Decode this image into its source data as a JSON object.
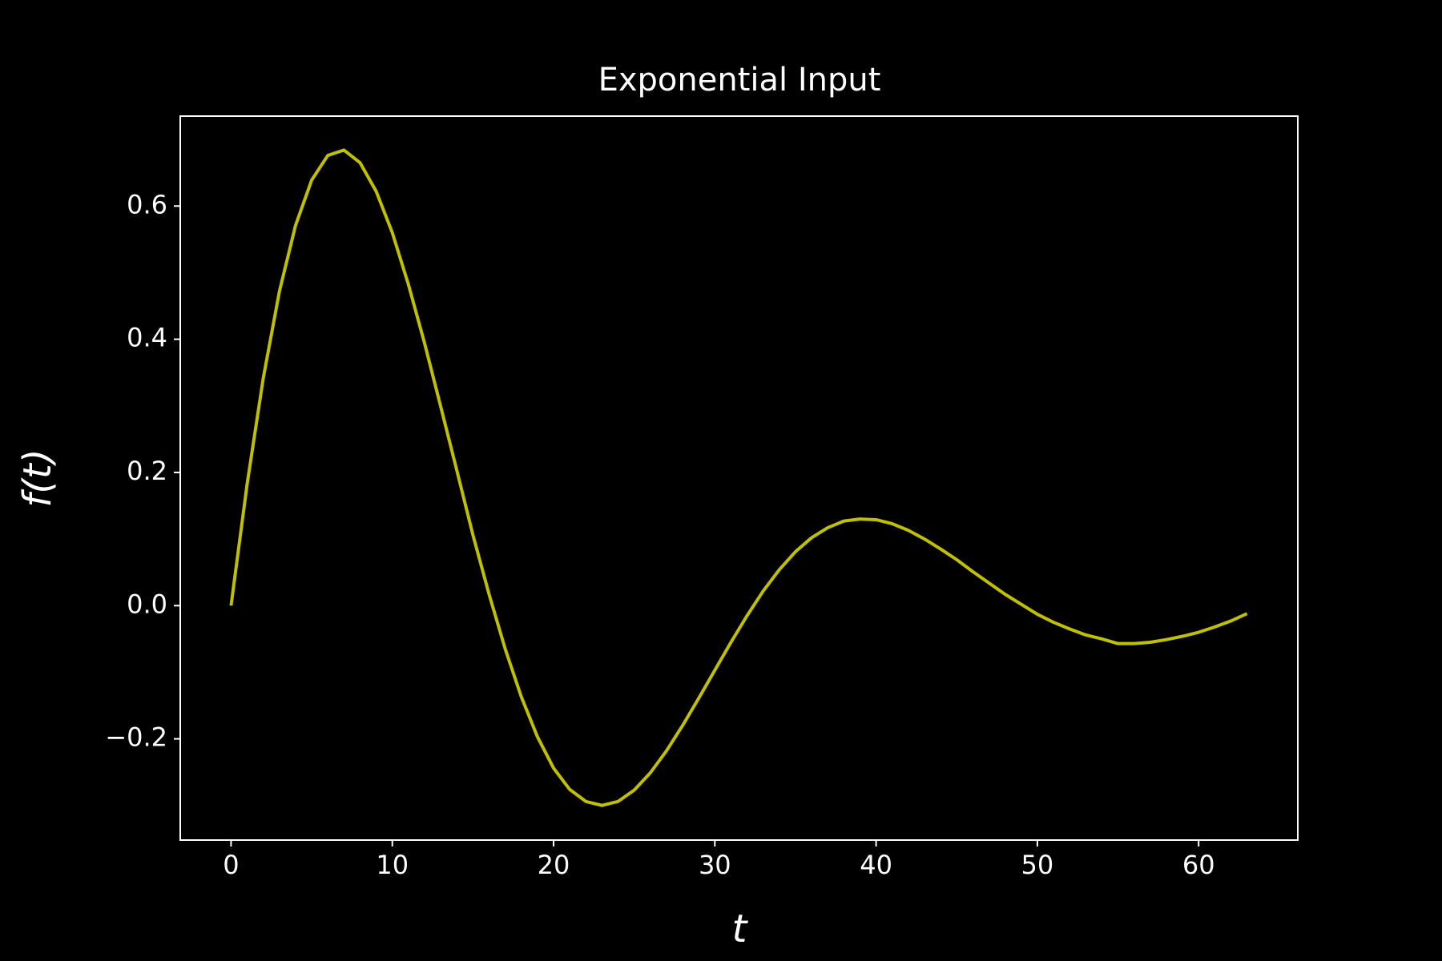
{
  "chart_data": {
    "type": "line",
    "title": "Exponential Input",
    "x_label": "t",
    "y_label": "f(t)",
    "x": [
      0,
      1,
      2,
      3,
      4,
      5,
      6,
      7,
      8,
      9,
      10,
      11,
      12,
      13,
      14,
      15,
      16,
      17,
      18,
      19,
      20,
      21,
      22,
      23,
      24,
      25,
      26,
      27,
      28,
      29,
      30,
      31,
      32,
      33,
      34,
      35,
      36,
      37,
      38,
      39,
      40,
      41,
      42,
      43,
      44,
      45,
      46,
      47,
      48,
      49,
      50,
      51,
      52,
      53,
      54,
      55,
      56,
      57,
      58,
      59,
      60,
      61,
      62,
      63
    ],
    "series": [
      {
        "name": "f(t)",
        "color": "#c0c000",
        "values": [
          0,
          0.183,
          0.342,
          0.472,
          0.571,
          0.639,
          0.676,
          0.684,
          0.665,
          0.622,
          0.56,
          0.482,
          0.394,
          0.299,
          0.203,
          0.106,
          0.017,
          -0.065,
          -0.137,
          -0.197,
          -0.244,
          -0.276,
          -0.294,
          -0.3,
          -0.294,
          -0.277,
          -0.251,
          -0.218,
          -0.18,
          -0.139,
          -0.097,
          -0.055,
          -0.015,
          0.022,
          0.054,
          0.081,
          0.102,
          0.117,
          0.127,
          0.13,
          0.129,
          0.123,
          0.113,
          0.1,
          0.085,
          0.069,
          0.051,
          0.034,
          0.017,
          0.002,
          -0.013,
          -0.025,
          -0.035,
          -0.044,
          -0.05,
          -0.057,
          -0.057,
          -0.055,
          -0.051,
          -0.046,
          -0.04,
          -0.032,
          -0.023,
          -0.012
        ]
      }
    ],
    "xlim": [
      -3.15,
      66.15
    ],
    "ylim": [
      -0.352,
      0.735
    ],
    "xticks": [
      0,
      10,
      20,
      30,
      40,
      50,
      60
    ],
    "yticks": [
      {
        "value": -0.2,
        "label": "−0.2"
      },
      {
        "value": 0,
        "label": "0.0"
      },
      0.2,
      0.4,
      0.6
    ]
  }
}
